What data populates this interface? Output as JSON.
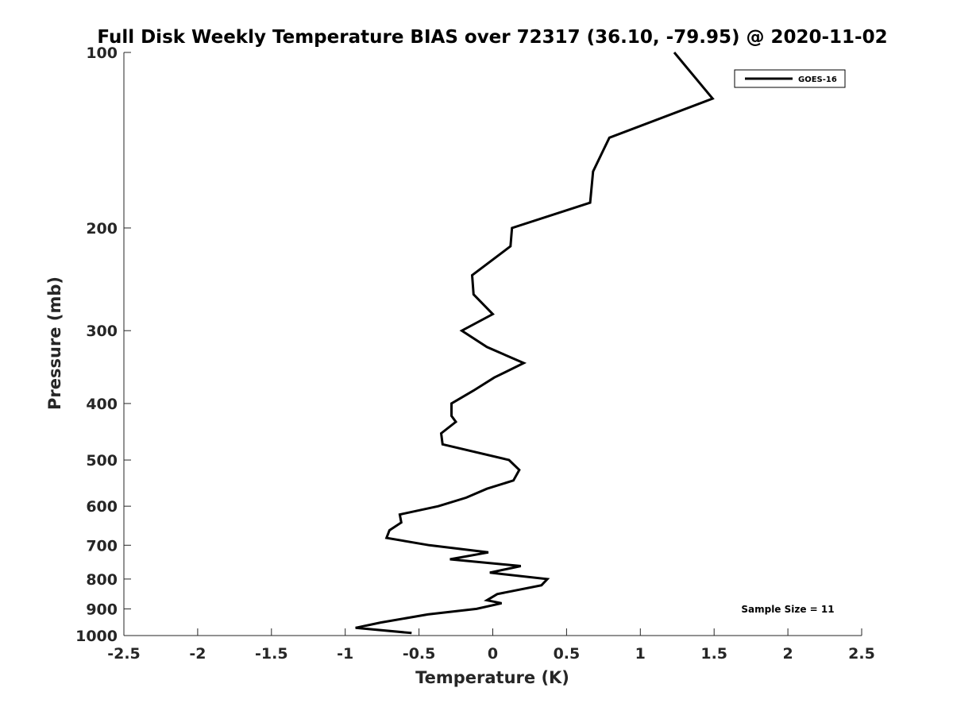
{
  "chart_data": {
    "type": "line",
    "title": "Full Disk Weekly Temperature BIAS over 72317 (36.10, -79.95) @ 2020-11-02",
    "xlabel": "Temperature (K)",
    "ylabel": "Pressure (mb)",
    "xlim": [
      -2.5,
      2.5
    ],
    "ylim": [
      100,
      1000
    ],
    "y_scale": "log",
    "y_reversed": true,
    "x_ticks": [
      "-2.5",
      "-2",
      "-1.5",
      "-1",
      "-0.5",
      "0",
      "0.5",
      "1",
      "1.5",
      "2",
      "2.5"
    ],
    "x_tick_values": [
      -2.5,
      -2,
      -1.5,
      -1,
      -0.5,
      0,
      0.5,
      1,
      1.5,
      2,
      2.5
    ],
    "y_ticks": [
      "100",
      "200",
      "300",
      "400",
      "500",
      "600",
      "700",
      "800",
      "900",
      "1000"
    ],
    "y_tick_values": [
      100,
      200,
      300,
      400,
      500,
      600,
      700,
      800,
      900,
      1000
    ],
    "grid": false,
    "legend_position": "top-right",
    "line_color": "#000000",
    "series": [
      {
        "name": "GOES-16",
        "points": [
          {
            "x": 1.23,
            "y": 100
          },
          {
            "x": 1.49,
            "y": 120
          },
          {
            "x": 0.79,
            "y": 140
          },
          {
            "x": 0.68,
            "y": 160
          },
          {
            "x": 0.66,
            "y": 181
          },
          {
            "x": 0.13,
            "y": 200
          },
          {
            "x": 0.12,
            "y": 215
          },
          {
            "x": -0.14,
            "y": 241
          },
          {
            "x": -0.13,
            "y": 260
          },
          {
            "x": 0.0,
            "y": 281
          },
          {
            "x": -0.21,
            "y": 300
          },
          {
            "x": -0.04,
            "y": 320
          },
          {
            "x": 0.21,
            "y": 341
          },
          {
            "x": 0.01,
            "y": 361
          },
          {
            "x": -0.13,
            "y": 380
          },
          {
            "x": -0.28,
            "y": 400
          },
          {
            "x": -0.28,
            "y": 420
          },
          {
            "x": -0.25,
            "y": 430
          },
          {
            "x": -0.35,
            "y": 450
          },
          {
            "x": -0.34,
            "y": 470
          },
          {
            "x": 0.11,
            "y": 500
          },
          {
            "x": 0.18,
            "y": 520
          },
          {
            "x": 0.14,
            "y": 542
          },
          {
            "x": -0.04,
            "y": 560
          },
          {
            "x": -0.18,
            "y": 580
          },
          {
            "x": -0.37,
            "y": 600
          },
          {
            "x": -0.63,
            "y": 620
          },
          {
            "x": -0.62,
            "y": 640
          },
          {
            "x": -0.7,
            "y": 660
          },
          {
            "x": -0.72,
            "y": 680
          },
          {
            "x": -0.43,
            "y": 700
          },
          {
            "x": -0.03,
            "y": 720
          },
          {
            "x": -0.29,
            "y": 740
          },
          {
            "x": 0.19,
            "y": 760
          },
          {
            "x": -0.02,
            "y": 780
          },
          {
            "x": 0.37,
            "y": 800
          },
          {
            "x": 0.33,
            "y": 820
          },
          {
            "x": 0.03,
            "y": 849
          },
          {
            "x": -0.04,
            "y": 870
          },
          {
            "x": 0.06,
            "y": 880
          },
          {
            "x": -0.11,
            "y": 900
          },
          {
            "x": -0.44,
            "y": 920
          },
          {
            "x": -0.76,
            "y": 950
          },
          {
            "x": -0.93,
            "y": 970
          },
          {
            "x": -0.55,
            "y": 990
          }
        ]
      }
    ],
    "annotation": "Sample Size = 11"
  }
}
